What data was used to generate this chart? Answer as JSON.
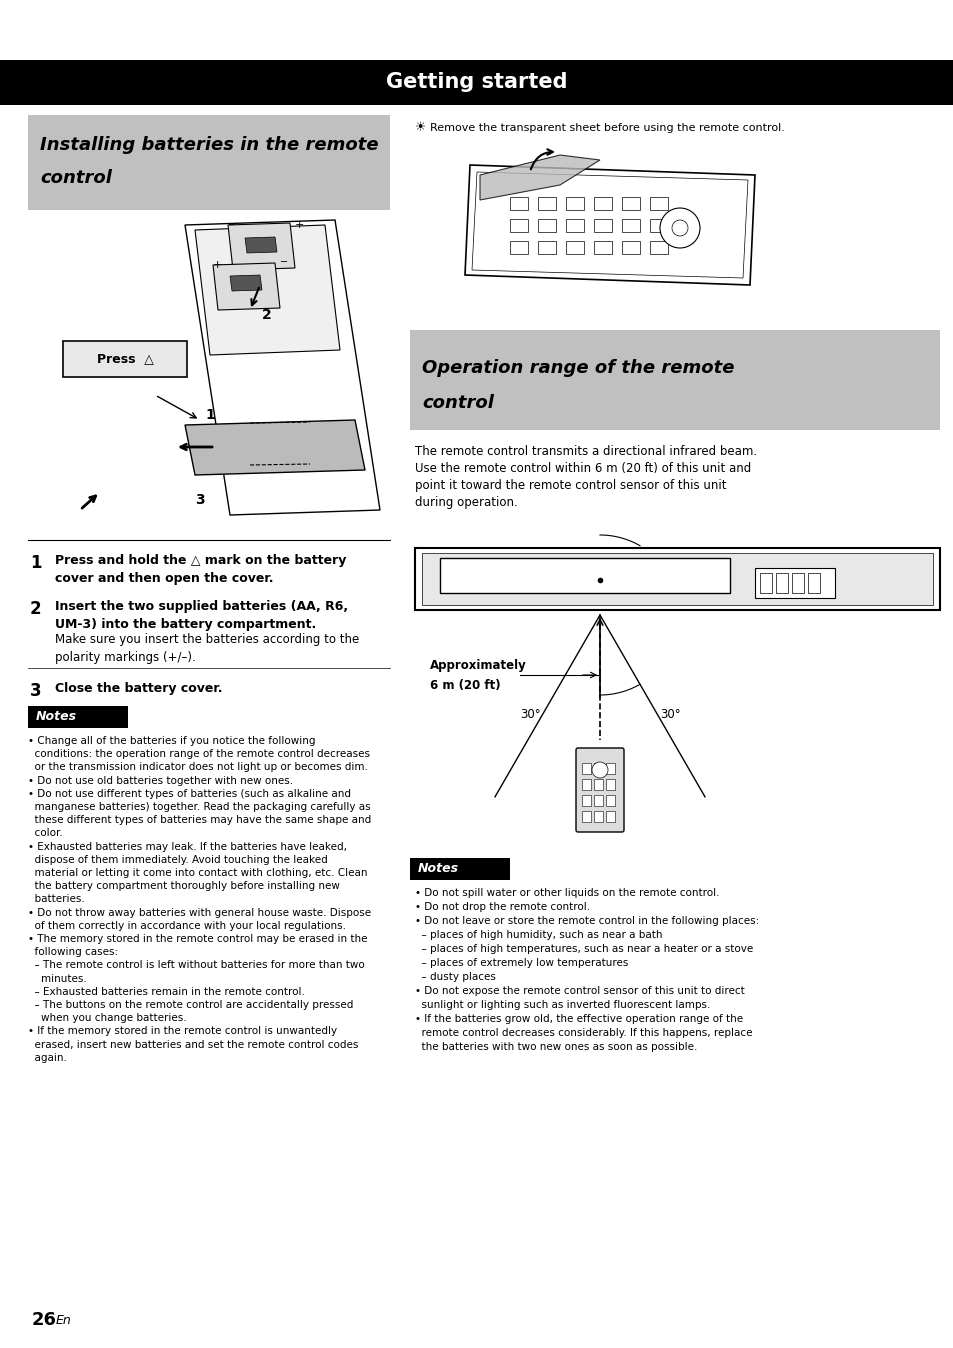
{
  "page_bg": "#ffffff",
  "header_bg": "#000000",
  "header_text": "Getting started",
  "header_text_color": "#ffffff",
  "section1_bg": "#c0c0c0",
  "section1_title_line1": "Installing batteries in the remote",
  "section1_title_line2": "control",
  "section2_bg": "#c0c0c0",
  "section2_title_line1": "Operation range of the remote",
  "section2_title_line2": "control",
  "tip_text": "Remove the transparent sheet before using the remote control.",
  "step1_bold": "Press and hold the △ mark on the battery\ncover and then open the cover.",
  "step2_bold": "Insert the two supplied batteries (AA, R6,\nUM-3) into the battery compartment.",
  "step2_normal": "Make sure you insert the batteries according to the\npolarity markings (+/–).",
  "step3_bold": "Close the battery cover.",
  "notes1_title": "Notes",
  "notes1_lines": [
    "• Change all of the batteries if you notice the following",
    "  conditions: the operation range of the remote control decreases",
    "  or the transmission indicator does not light up or becomes dim.",
    "• Do not use old batteries together with new ones.",
    "• Do not use different types of batteries (such as alkaline and",
    "  manganese batteries) together. Read the packaging carefully as",
    "  these different types of batteries may have the same shape and",
    "  color.",
    "• Exhausted batteries may leak. If the batteries have leaked,",
    "  dispose of them immediately. Avoid touching the leaked",
    "  material or letting it come into contact with clothing, etc. Clean",
    "  the battery compartment thoroughly before installing new",
    "  batteries.",
    "• Do not throw away batteries with general house waste. Dispose",
    "  of them correctly in accordance with your local regulations.",
    "• The memory stored in the remote control may be erased in the",
    "  following cases:",
    "  – The remote control is left without batteries for more than two",
    "    minutes.",
    "  – Exhausted batteries remain in the remote control.",
    "  – The buttons on the remote control are accidentally pressed",
    "    when you change batteries.",
    "• If the memory stored in the remote control is unwantedly",
    "  erased, insert new batteries and set the remote control codes",
    "  again."
  ],
  "op_range_text_lines": [
    "The remote control transmits a directional infrared beam.",
    "Use the remote control within 6 m (20 ft) of this unit and",
    "point it toward the remote control sensor of this unit",
    "during operation."
  ],
  "approx_label_line1": "Approximately",
  "approx_label_line2": "6 m (20 ft)",
  "notes2_title": "Notes",
  "notes2_lines": [
    "• Do not spill water or other liquids on the remote control.",
    "• Do not drop the remote control.",
    "• Do not leave or store the remote control in the following places:",
    "  – places of high humidity, such as near a bath",
    "  – places of high temperatures, such as near a heater or a stove",
    "  – places of extremely low temperatures",
    "  – dusty places",
    "• Do not expose the remote control sensor of this unit to direct",
    "  sunlight or lighting such as inverted fluorescent lamps.",
    "• If the batteries grow old, the effective operation range of the",
    "  remote control decreases considerably. If this happens, replace",
    "  the batteries with two new ones as soon as possible."
  ],
  "page_num": "26",
  "page_lang": "En"
}
